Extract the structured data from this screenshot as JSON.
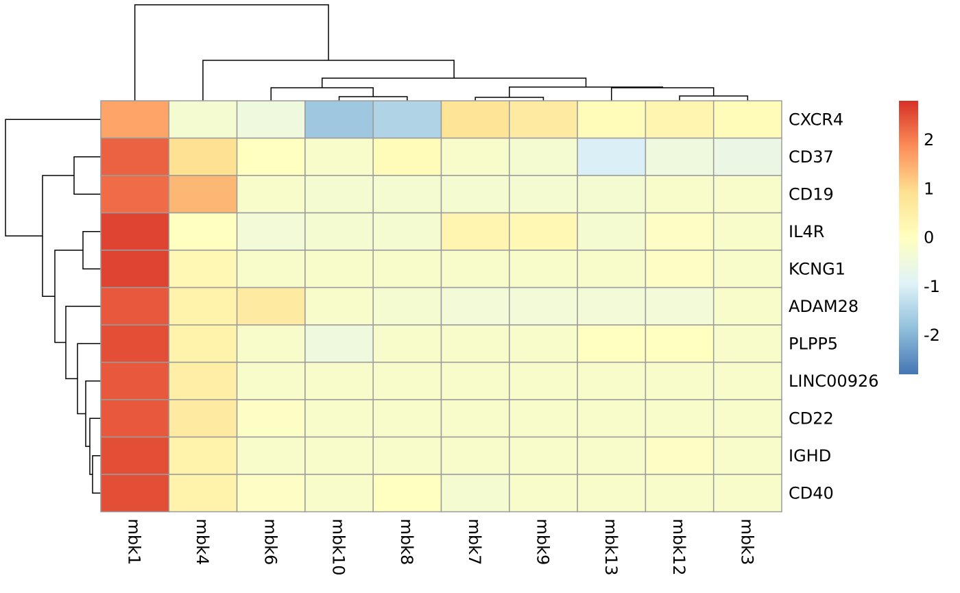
{
  "chart_data": {
    "type": "heatmap",
    "rows": [
      "CXCR4",
      "CD37",
      "CD19",
      "IL4R",
      "KCNG1",
      "ADAM28",
      "PLPP5",
      "LINC00926",
      "CD22",
      "IGHD",
      "CD40"
    ],
    "columns": [
      "mbk1",
      "mbk4",
      "mbk6",
      "mbk10",
      "mbk8",
      "mbk7",
      "mbk9",
      "mbk13",
      "mbk12",
      "mbk3"
    ],
    "values": [
      [
        1.6,
        -0.3,
        -0.5,
        -1.7,
        -1.5,
        0.8,
        0.6,
        0.1,
        0.3,
        0.1
      ],
      [
        2.3,
        0.9,
        0.0,
        -0.2,
        0.1,
        -0.2,
        -0.3,
        -1.0,
        -0.5,
        -0.6
      ],
      [
        2.2,
        1.4,
        -0.2,
        -0.3,
        -0.3,
        -0.3,
        -0.3,
        -0.3,
        -0.2,
        -0.2
      ],
      [
        2.6,
        0.0,
        -0.4,
        -0.3,
        -0.3,
        0.3,
        0.2,
        -0.3,
        -0.1,
        -0.2
      ],
      [
        2.6,
        0.2,
        -0.2,
        -0.2,
        -0.2,
        -0.2,
        -0.2,
        -0.2,
        -0.1,
        -0.2
      ],
      [
        2.4,
        0.4,
        0.6,
        -0.2,
        -0.3,
        -0.4,
        -0.4,
        -0.4,
        -0.4,
        -0.2
      ],
      [
        2.5,
        0.4,
        -0.2,
        -0.5,
        -0.2,
        -0.2,
        -0.2,
        0.0,
        0.0,
        -0.2
      ],
      [
        2.4,
        0.5,
        -0.2,
        -0.2,
        -0.2,
        -0.2,
        -0.2,
        -0.2,
        -0.2,
        -0.2
      ],
      [
        2.4,
        0.6,
        -0.1,
        -0.2,
        -0.2,
        -0.2,
        -0.2,
        -0.2,
        -0.2,
        -0.2
      ],
      [
        2.5,
        0.4,
        -0.2,
        -0.2,
        -0.2,
        -0.2,
        -0.2,
        -0.2,
        -0.1,
        -0.2
      ],
      [
        2.5,
        0.4,
        -0.1,
        -0.2,
        0.0,
        -0.3,
        -0.2,
        -0.2,
        -0.2,
        -0.2
      ]
    ],
    "color_scale": {
      "min": -2.8,
      "max": 2.8,
      "stops": [
        "#4575b4",
        "#91bfdb",
        "#e0f3f8",
        "#ffffbf",
        "#fee090",
        "#fc8d59",
        "#d73027"
      ]
    },
    "legend_ticks": [
      2,
      1,
      0,
      -1,
      -2
    ],
    "row_dendrogram": true,
    "column_dendrogram": true
  },
  "colors": {
    "grid": "#9b9b9b",
    "dendrogram": "#000000"
  }
}
